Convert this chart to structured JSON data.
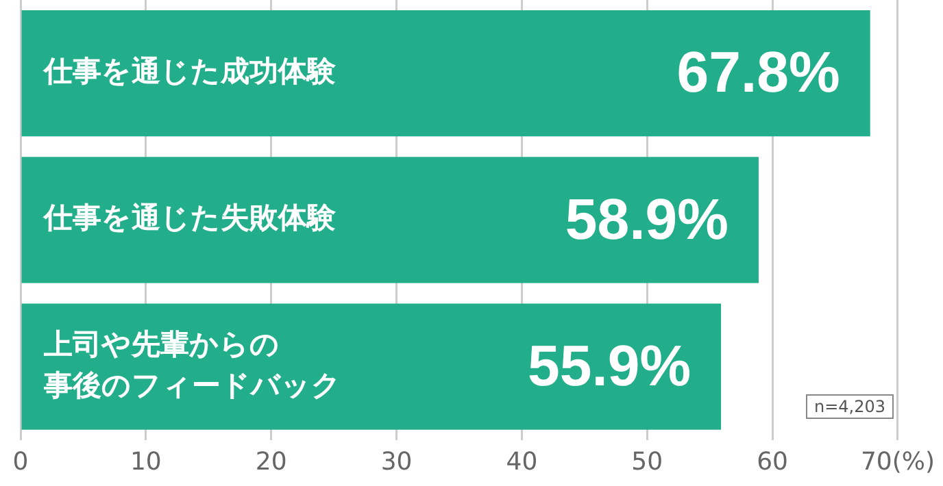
{
  "chart_data": {
    "type": "bar",
    "orientation": "horizontal",
    "categories": [
      "仕事を通じた成功体験",
      "仕事を通じた失敗体験",
      "上司や先輩からの事後のフィードバック"
    ],
    "values": [
      67.8,
      58.9,
      55.9
    ],
    "value_labels": [
      "67.8%",
      "58.9%",
      "55.9%"
    ],
    "color": "#22ae8a",
    "xlim": [
      0,
      70
    ],
    "xticks": [
      0,
      10,
      20,
      30,
      40,
      50,
      60,
      {
        "value": 70,
        "label": "70(%)"
      }
    ],
    "grid": "x",
    "tick_labels": "x",
    "annotations": [
      "n=4,203"
    ]
  }
}
